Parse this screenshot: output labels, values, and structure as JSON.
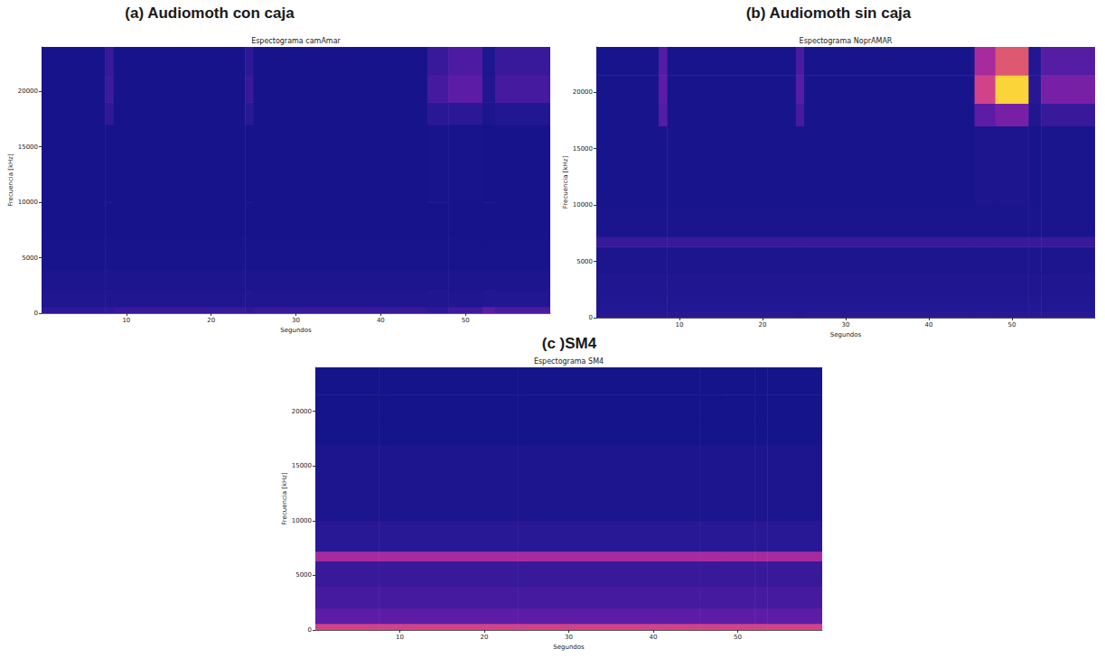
{
  "chart_data": [
    {
      "type": "heatmap",
      "title": "(a) Audiomoth con caja",
      "subtitle": "Espectograma camAmar",
      "xlabel": "Segundos",
      "ylabel": "Frecuencia [kHz]",
      "xlim": [
        0,
        60
      ],
      "ylim": [
        0,
        24000
      ],
      "xticks": [
        10,
        20,
        30,
        40,
        50
      ],
      "yticks": [
        0,
        5000,
        10000,
        15000,
        20000
      ],
      "grid": false,
      "x": [
        0,
        7.5,
        8.5,
        24,
        25,
        45.5,
        48,
        52,
        53.5,
        60
      ],
      "y": [
        0,
        600,
        2000,
        4000,
        6300,
        7200,
        10000,
        17000,
        19000,
        21500,
        24000
      ],
      "cells": [
        [
          0.18,
          0.18,
          0.2,
          0.18,
          0.2,
          0.18,
          0.22,
          0.3,
          0.25
        ],
        [
          0.1,
          0.1,
          0.1,
          0.1,
          0.1,
          0.1,
          0.1,
          0.12,
          0.12
        ],
        [
          0.08,
          0.08,
          0.08,
          0.08,
          0.08,
          0.08,
          0.08,
          0.08,
          0.08
        ],
        [
          0.06,
          0.06,
          0.06,
          0.06,
          0.06,
          0.06,
          0.06,
          0.06,
          0.06
        ],
        [
          0.06,
          0.06,
          0.06,
          0.06,
          0.06,
          0.06,
          0.06,
          0.06,
          0.06
        ],
        [
          0.05,
          0.05,
          0.05,
          0.05,
          0.05,
          0.05,
          0.05,
          0.05,
          0.05
        ],
        [
          0.05,
          0.05,
          0.05,
          0.05,
          0.05,
          0.06,
          0.06,
          0.05,
          0.05
        ],
        [
          0.05,
          0.18,
          0.05,
          0.16,
          0.05,
          0.16,
          0.17,
          0.08,
          0.12
        ],
        [
          0.05,
          0.22,
          0.05,
          0.2,
          0.05,
          0.24,
          0.3,
          0.1,
          0.24
        ],
        [
          0.05,
          0.2,
          0.05,
          0.18,
          0.05,
          0.2,
          0.26,
          0.09,
          0.2
        ]
      ]
    },
    {
      "type": "heatmap",
      "title": "(b) Audiomoth sin caja",
      "subtitle": "Espectograma NoprAMAR",
      "xlabel": "Segundos",
      "ylabel": "Frecuencia [kHz]",
      "xlim": [
        0,
        60
      ],
      "ylim": [
        0,
        24000
      ],
      "xticks": [
        10,
        20,
        30,
        40,
        50
      ],
      "yticks": [
        0,
        5000,
        10000,
        15000,
        20000
      ],
      "grid": false,
      "x": [
        0,
        7.5,
        8.5,
        24,
        25,
        45.5,
        48,
        52,
        53.5,
        60
      ],
      "y": [
        0,
        600,
        2000,
        4000,
        6300,
        7200,
        10000,
        17000,
        19000,
        21500,
        24000
      ],
      "cells": [
        [
          0.15,
          0.15,
          0.16,
          0.15,
          0.16,
          0.16,
          0.16,
          0.16,
          0.16
        ],
        [
          0.12,
          0.12,
          0.12,
          0.12,
          0.12,
          0.12,
          0.12,
          0.12,
          0.12
        ],
        [
          0.1,
          0.1,
          0.1,
          0.1,
          0.1,
          0.1,
          0.1,
          0.1,
          0.1
        ],
        [
          0.08,
          0.08,
          0.08,
          0.08,
          0.08,
          0.08,
          0.08,
          0.08,
          0.08
        ],
        [
          0.2,
          0.2,
          0.2,
          0.2,
          0.2,
          0.2,
          0.2,
          0.2,
          0.2
        ],
        [
          0.07,
          0.07,
          0.07,
          0.07,
          0.07,
          0.07,
          0.07,
          0.07,
          0.07
        ],
        [
          0.06,
          0.06,
          0.06,
          0.06,
          0.06,
          0.08,
          0.08,
          0.06,
          0.07
        ],
        [
          0.06,
          0.28,
          0.06,
          0.24,
          0.06,
          0.3,
          0.35,
          0.1,
          0.2
        ],
        [
          0.06,
          0.3,
          0.06,
          0.28,
          0.06,
          0.55,
          0.8,
          0.15,
          0.35
        ],
        [
          0.06,
          0.28,
          0.06,
          0.25,
          0.06,
          0.45,
          0.6,
          0.12,
          0.28
        ]
      ]
    },
    {
      "type": "heatmap",
      "title": "(c )SM4",
      "subtitle": "Espectograma SM4",
      "xlabel": "Segundos",
      "ylabel": "Frecuencia [kHz]",
      "xlim": [
        0,
        60
      ],
      "ylim": [
        0,
        24000
      ],
      "xticks": [
        10,
        20,
        30,
        40,
        50
      ],
      "yticks": [
        0,
        5000,
        10000,
        15000,
        20000
      ],
      "grid": false,
      "x": [
        0,
        7.5,
        8.5,
        24,
        25,
        45.5,
        48,
        52,
        53.5,
        60
      ],
      "y": [
        0,
        600,
        2000,
        4000,
        6300,
        7200,
        10000,
        17000,
        19000,
        21500,
        24000
      ],
      "cells": [
        [
          0.55,
          0.55,
          0.55,
          0.55,
          0.55,
          0.55,
          0.55,
          0.55,
          0.55
        ],
        [
          0.3,
          0.3,
          0.3,
          0.3,
          0.3,
          0.3,
          0.3,
          0.3,
          0.3
        ],
        [
          0.24,
          0.24,
          0.24,
          0.24,
          0.24,
          0.24,
          0.24,
          0.24,
          0.24
        ],
        [
          0.2,
          0.2,
          0.2,
          0.2,
          0.2,
          0.2,
          0.2,
          0.2,
          0.2
        ],
        [
          0.45,
          0.45,
          0.45,
          0.45,
          0.45,
          0.45,
          0.45,
          0.45,
          0.45
        ],
        [
          0.16,
          0.16,
          0.16,
          0.16,
          0.16,
          0.16,
          0.16,
          0.16,
          0.16
        ],
        [
          0.08,
          0.08,
          0.08,
          0.08,
          0.08,
          0.08,
          0.08,
          0.08,
          0.08
        ],
        [
          0.04,
          0.04,
          0.04,
          0.04,
          0.04,
          0.04,
          0.04,
          0.04,
          0.04
        ],
        [
          0.04,
          0.04,
          0.04,
          0.04,
          0.04,
          0.04,
          0.04,
          0.04,
          0.04
        ],
        [
          0.04,
          0.04,
          0.04,
          0.04,
          0.04,
          0.04,
          0.04,
          0.04,
          0.04
        ]
      ]
    }
  ]
}
